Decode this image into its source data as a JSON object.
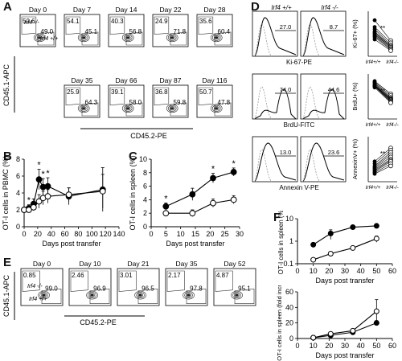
{
  "panelA": {
    "letter": "A",
    "ylabel": "CD45.1-APC",
    "xlabel": "CD45.2-PE",
    "legend_ko": "Irf4 -/-",
    "legend_wt": "Irf4 +/+",
    "plots": [
      {
        "day": "Day 0",
        "top": "50.6",
        "bottom": "49.0"
      },
      {
        "day": "Day 7",
        "top": "54.1",
        "bottom": "45.1"
      },
      {
        "day": "Day 14",
        "top": "40.3",
        "bottom": "56.8"
      },
      {
        "day": "Day 22",
        "top": "24.9",
        "bottom": "71.8"
      },
      {
        "day": "Day 28",
        "top": "35.6",
        "bottom": "60.4"
      },
      {
        "day": "Day 35",
        "top": "25.9",
        "bottom": "64.3"
      },
      {
        "day": "Day 66",
        "top": "39.1",
        "bottom": "58.0"
      },
      {
        "day": "Day 87",
        "top": "36.8",
        "bottom": "59.8"
      },
      {
        "day": "Day 116",
        "top": "50.7",
        "bottom": "47.8"
      }
    ]
  },
  "panelB": {
    "letter": "B",
    "chart_data": {
      "type": "line",
      "ylabel": "OT-I cells in PBMC (%)",
      "xlabel": "Days post transfer",
      "xlim": [
        0,
        140
      ],
      "ylim": [
        0,
        8
      ],
      "xticks": [
        "0",
        "20",
        "40",
        "60",
        "80",
        "100",
        "120",
        "140"
      ],
      "yticks": [
        "0",
        "2",
        "4",
        "6",
        "8"
      ],
      "series": [
        {
          "filled": true,
          "x": [
            0,
            7,
            14,
            22,
            28,
            35,
            66,
            116
          ],
          "y": [
            2.0,
            2.2,
            2.7,
            5.6,
            4.7,
            4.8,
            3.6,
            4.4
          ],
          "err": [
            0.3,
            0.4,
            0.6,
            1.2,
            1.0,
            1.0,
            1.0,
            2.6
          ]
        },
        {
          "filled": false,
          "x": [
            0,
            7,
            14,
            22,
            28,
            35,
            66,
            116
          ],
          "y": [
            2.0,
            2.0,
            2.3,
            3.0,
            3.4,
            3.6,
            3.8,
            4.2
          ],
          "err": [
            0.3,
            0.3,
            0.4,
            0.8,
            0.8,
            0.8,
            0.8,
            2.0
          ]
        }
      ],
      "stars": [
        {
          "x": 7,
          "text": "*"
        },
        {
          "x": 22,
          "text": "*"
        },
        {
          "x": 28,
          "text": "*"
        },
        {
          "x": 35,
          "text": "*"
        }
      ]
    }
  },
  "panelC": {
    "letter": "C",
    "chart_data": {
      "type": "line",
      "ylabel": "OT-I cells in spleen (%)",
      "xlabel": "Days post transfer",
      "xlim": [
        0,
        30
      ],
      "ylim": [
        0,
        10
      ],
      "xticks": [
        "0",
        "5",
        "10",
        "15",
        "20",
        "25",
        "30"
      ],
      "yticks": [
        "0",
        "2",
        "4",
        "6",
        "8",
        "10"
      ],
      "series": [
        {
          "filled": true,
          "x": [
            5,
            14,
            21,
            28
          ],
          "y": [
            3.0,
            4.8,
            7.2,
            8.1
          ],
          "err": [
            0.5,
            0.9,
            0.7,
            0.6
          ]
        },
        {
          "filled": false,
          "x": [
            5,
            14,
            21,
            28
          ],
          "y": [
            2.0,
            2.0,
            3.5,
            4.0
          ],
          "err": [
            0.3,
            0.5,
            0.6,
            0.6
          ]
        }
      ],
      "stars": [
        {
          "x": 5,
          "text": "*"
        },
        {
          "x": 21,
          "text": "*"
        },
        {
          "x": 28,
          "text": "*"
        }
      ]
    }
  },
  "panelD": {
    "letter": "D",
    "col_wt": "Irf4 +/+",
    "col_ko": "Irf4 -/-",
    "rows": [
      {
        "xlabel": "Ki-67-PE",
        "wt": "27.0",
        "ko": "8.7",
        "ylabel": "Ki-67+ (%)",
        "stars": "**"
      },
      {
        "xlabel": "BrdU-FITC",
        "wt": "74.0",
        "ko": "44.6",
        "ylabel": "BrdU+ (%)",
        "stars": "**"
      },
      {
        "xlabel": "Annexin V-PE",
        "wt": "13.0",
        "ko": "23.6",
        "ylabel": "AnnexinV+ (%)",
        "stars": "**"
      }
    ],
    "xcat_wt": "Irf4+/+",
    "xcat_ko": "Irf4-/-"
  },
  "panelE": {
    "letter": "E",
    "ylabel": "CD45.1-APC",
    "xlabel": "CD45.2-PE",
    "legend_ko": "Irf4 -/-",
    "legend_wt": "Irf4 +/+",
    "plots": [
      {
        "day": "Day 0",
        "top": "0.85",
        "bottom": "99.0"
      },
      {
        "day": "Day 10",
        "top": "2.46",
        "bottom": "96.9"
      },
      {
        "day": "Day 21",
        "top": "3.01",
        "bottom": "96.5"
      },
      {
        "day": "Day 35",
        "top": "2.17",
        "bottom": "97.8"
      },
      {
        "day": "Day 52",
        "top": "4.87",
        "bottom": "95.1"
      }
    ]
  },
  "panelF": {
    "letter": "F",
    "top": {
      "chart_data": {
        "type": "line",
        "ylabel": "OT-I cells in spleen (%)",
        "xlabel": "Days post transfer",
        "scale": "log",
        "xlim": [
          0,
          60
        ],
        "ylim": [
          0.1,
          10
        ],
        "xticks": [
          "0",
          "10",
          "20",
          "30",
          "40",
          "50",
          "60"
        ],
        "yticks": [
          "0.1",
          "1",
          "10"
        ],
        "series": [
          {
            "filled": true,
            "x": [
              10,
              21,
              35,
              50
            ],
            "y": [
              0.7,
              2.2,
              4.2,
              4.8
            ],
            "err": [
              0.15,
              1.0,
              0.4,
              0.3
            ]
          },
          {
            "filled": false,
            "x": [
              10,
              21,
              35,
              50
            ],
            "y": [
              0.15,
              0.28,
              0.5,
              1.3
            ],
            "err": [
              0.02,
              0.05,
              0.1,
              0.4
            ]
          }
        ]
      }
    },
    "bottom": {
      "chart_data": {
        "type": "line",
        "ylabel": "OT-I cells in spleen (fold increase)",
        "xlabel": "Days post transfer",
        "xlim": [
          0,
          60
        ],
        "ylim": [
          0,
          60
        ],
        "xticks": [
          "0",
          "10",
          "20",
          "30",
          "40",
          "50",
          "60"
        ],
        "yticks": [
          "0",
          "20",
          "40",
          "60"
        ],
        "series": [
          {
            "filled": true,
            "x": [
              10,
              21,
              35,
              50
            ],
            "y": [
              1,
              4,
              8,
              20
            ],
            "err": [
              0.3,
              1.0,
              1.5,
              3.0
            ]
          },
          {
            "filled": false,
            "x": [
              10,
              21,
              35,
              50
            ],
            "y": [
              1,
              6,
              10,
              35
            ],
            "err": [
              0.3,
              1.5,
              2.0,
              15.0
            ]
          }
        ]
      }
    }
  }
}
